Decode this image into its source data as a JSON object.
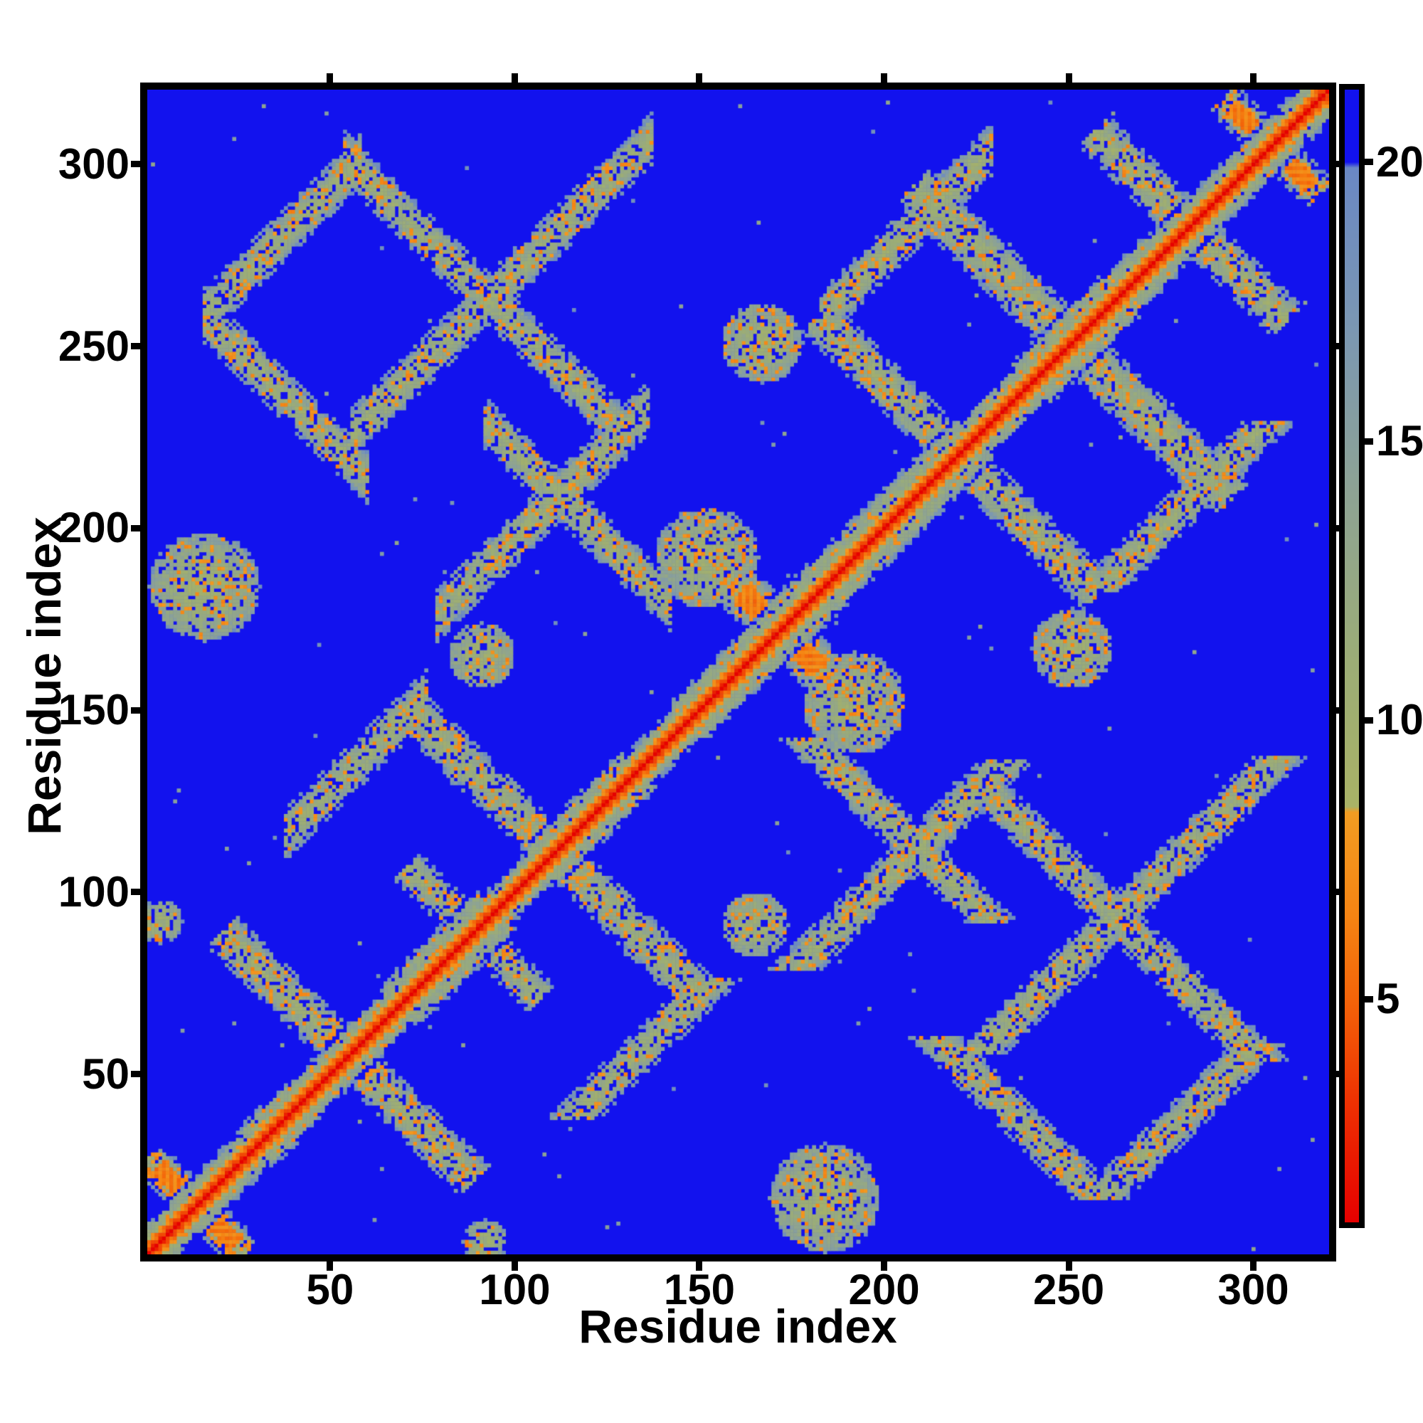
{
  "axes": {
    "xlabel": "Residue index",
    "ylabel": "Residue index",
    "x_ticks": [
      50,
      100,
      150,
      200,
      250,
      300
    ],
    "y_ticks": [
      50,
      100,
      150,
      200,
      250,
      300
    ],
    "x_range": [
      1,
      320
    ],
    "y_range": [
      1,
      320
    ]
  },
  "colorbar": {
    "ticks": [
      5,
      10,
      15,
      20
    ],
    "vmin": 1.0,
    "vmax": 21.3,
    "tick_side": "right"
  },
  "colors": {
    "background_blue": "#1212ee",
    "diagonal_red": "#e60000",
    "near_diagonal_orange": "#f58413",
    "contact_green": "#9cad76",
    "fringe_steel": "#7b97b2",
    "frame": "#000000"
  },
  "chart_data": {
    "type": "heatmap",
    "title": "",
    "xlabel": "Residue index",
    "ylabel": "Residue index",
    "x_range": [
      1,
      320
    ],
    "y_range": [
      1,
      320
    ],
    "n_residues": 320,
    "value_range": [
      1.0,
      21.3
    ],
    "description": "Symmetric pairwise residue-residue distance map of a 320-residue protein with two similar ~160-residue domains. Red main diagonal (shortest distances), checkered orange near-diagonal band, sage-green/steel antiparallel (antidiagonal) and parallel (diagonal) contact streaks on a saturated blue (>=20) background.",
    "colormap_stops": [
      [
        1.0,
        "#e60000"
      ],
      [
        3.2,
        "#ee3202"
      ],
      [
        5.0,
        "#f46409"
      ],
      [
        6.5,
        "#f58413"
      ],
      [
        8.35,
        "#f29c22"
      ],
      [
        8.45,
        "#a9b266"
      ],
      [
        11.0,
        "#9cad76"
      ],
      [
        14.0,
        "#8ea393"
      ],
      [
        17.0,
        "#7b97b2"
      ],
      [
        19.9,
        "#6a88c4"
      ],
      [
        20.0,
        "#1212ee"
      ],
      [
        21.3,
        "#1212ee"
      ]
    ],
    "background_value": 21.3,
    "features": {
      "hairpins": [
        {
          "c": 14,
          "L": 13,
          "w": 7,
          "warm": 1
        },
        {
          "c": 55,
          "L": 34,
          "w": 8,
          "warm": 0
        },
        {
          "c": 89,
          "L": 18,
          "w": 7,
          "warm": 0
        },
        {
          "c": 111,
          "L": 40,
          "w": 8,
          "warm": 0
        },
        {
          "c": 172,
          "L": 26,
          "w": 9,
          "warm": 1
        },
        {
          "c": 220,
          "L": 38,
          "w": 8,
          "warm": 0
        },
        {
          "c": 251,
          "L": 43,
          "w": 9,
          "warm": 0
        },
        {
          "c": 283,
          "L": 26,
          "w": 8,
          "warm": 0
        },
        {
          "c": 305,
          "L": 13,
          "w": 7,
          "warm": 1
        }
      ],
      "antidiagonal_segments": [
        {
          "s": 274,
          "i0": 16,
          "i1": 60,
          "w": 7
        },
        {
          "s": 356,
          "i0": 54,
          "i1": 130,
          "w": 7
        },
        {
          "s": 321,
          "i0": 92,
          "i1": 142,
          "w": 7
        }
      ],
      "diagonal_segments": [
        {
          "off": 78,
          "i0": 38,
          "i1": 76,
          "w": 7
        },
        {
          "off": 75,
          "i0": 183,
          "i1": 229,
          "w": 7
        },
        {
          "off": 243,
          "i0": 16,
          "i1": 58,
          "w": 7
        },
        {
          "off": 170,
          "i0": 56,
          "i1": 137,
          "w": 7
        },
        {
          "off": 97,
          "i0": 79,
          "i1": 136,
          "w": 7
        }
      ],
      "clusters": [
        {
          "x": 16,
          "y": 184,
          "r": 15
        },
        {
          "x": 4,
          "y": 92,
          "r": 6
        },
        {
          "x": 91,
          "y": 165,
          "r": 9
        },
        {
          "x": 152,
          "y": 192,
          "r": 14
        },
        {
          "x": 167,
          "y": 251,
          "r": 11
        }
      ]
    },
    "noise": {
      "orange_speckle_p": 0.13,
      "hole_p": 0.1,
      "fringe_p": 0.45,
      "lone_dot_p": 0.0015
    }
  }
}
